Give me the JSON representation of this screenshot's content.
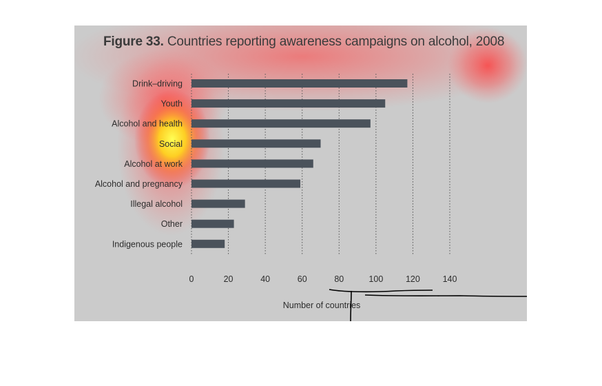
{
  "figure": {
    "number_label": "Figure 33.",
    "title_text": "Countries reporting awareness campaigns on alcohol, 2008"
  },
  "chart_data": {
    "type": "bar",
    "orientation": "horizontal",
    "title": "Figure 33. Countries reporting awareness campaigns on alcohol, 2008",
    "categories": [
      "Drink–driving",
      "Youth",
      "Alcohol and health",
      "Social",
      "Alcohol at work",
      "Alcohol and pregnancy",
      "Illegal alcohol",
      "Other",
      "Indigenous people"
    ],
    "values": [
      117,
      105,
      97,
      70,
      66,
      59,
      29,
      23,
      18
    ],
    "xlabel": "Number of countries",
    "ylabel": "",
    "xlim": [
      0,
      140
    ],
    "xticks": [
      0,
      20,
      40,
      60,
      80,
      100,
      120,
      140
    ],
    "grid": "vertical dotted",
    "colors": {
      "bar": "#4a525b",
      "panel": "#cbcbcb",
      "text": "#2d2d2d",
      "grid": "#555555"
    }
  }
}
